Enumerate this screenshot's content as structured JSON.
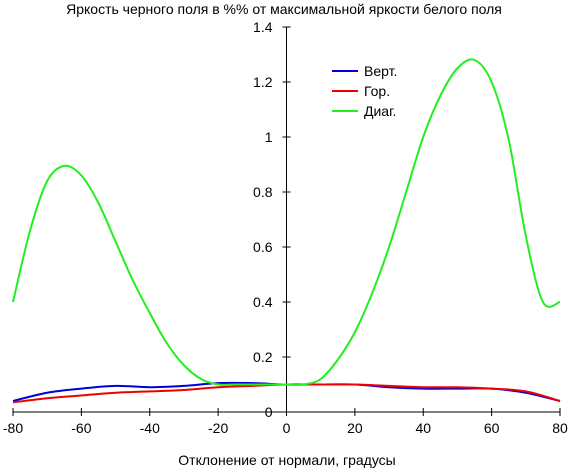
{
  "chart_data": {
    "type": "line",
    "title": "Яркость черного поля в %% от максимальной яркости белого поля",
    "xlabel": "Отклонение от нормали, градусы",
    "ylabel": "",
    "xlim": [
      -80,
      80
    ],
    "ylim": [
      0,
      1.4
    ],
    "xticks": [
      "-80",
      "-60",
      "-40",
      "-20",
      "0",
      "20",
      "40",
      "60",
      "80"
    ],
    "yticks": [
      "0",
      "0.2",
      "0.4",
      "0.6",
      "0.8",
      "1",
      "1.2",
      "1.4"
    ],
    "grid": false,
    "legend_position": "top-right",
    "series": [
      {
        "name": "Верт.",
        "color": "#0000dd",
        "x": [
          -80,
          -70,
          -60,
          -50,
          -40,
          -30,
          -20,
          -10,
          0,
          10,
          20,
          30,
          40,
          50,
          60,
          70,
          80
        ],
        "y": [
          0.04,
          0.07,
          0.085,
          0.095,
          0.09,
          0.095,
          0.105,
          0.105,
          0.1,
          0.1,
          0.1,
          0.09,
          0.085,
          0.085,
          0.085,
          0.07,
          0.04
        ]
      },
      {
        "name": "Гор.",
        "color": "#ee0000",
        "x": [
          -80,
          -70,
          -60,
          -50,
          -40,
          -30,
          -20,
          -10,
          0,
          10,
          20,
          30,
          40,
          50,
          60,
          70,
          80
        ],
        "y": [
          0.035,
          0.05,
          0.06,
          0.07,
          0.075,
          0.08,
          0.09,
          0.095,
          0.1,
          0.1,
          0.1,
          0.095,
          0.09,
          0.09,
          0.085,
          0.075,
          0.04
        ]
      },
      {
        "name": "Диаг.",
        "color": "#22ee22",
        "x": [
          -80,
          -75,
          -70,
          -65,
          -60,
          -55,
          -50,
          -45,
          -40,
          -35,
          -30,
          -25,
          -20,
          -15,
          -10,
          -5,
          0,
          5,
          10,
          15,
          20,
          25,
          30,
          35,
          40,
          45,
          50,
          55,
          60,
          65,
          70,
          75,
          80
        ],
        "y": [
          0.4,
          0.66,
          0.84,
          0.895,
          0.86,
          0.76,
          0.62,
          0.48,
          0.36,
          0.25,
          0.17,
          0.12,
          0.1,
          0.1,
          0.1,
          0.1,
          0.1,
          0.1,
          0.12,
          0.19,
          0.29,
          0.43,
          0.6,
          0.8,
          1.0,
          1.15,
          1.25,
          1.28,
          1.2,
          0.99,
          0.64,
          0.4,
          0.4
        ]
      }
    ]
  }
}
